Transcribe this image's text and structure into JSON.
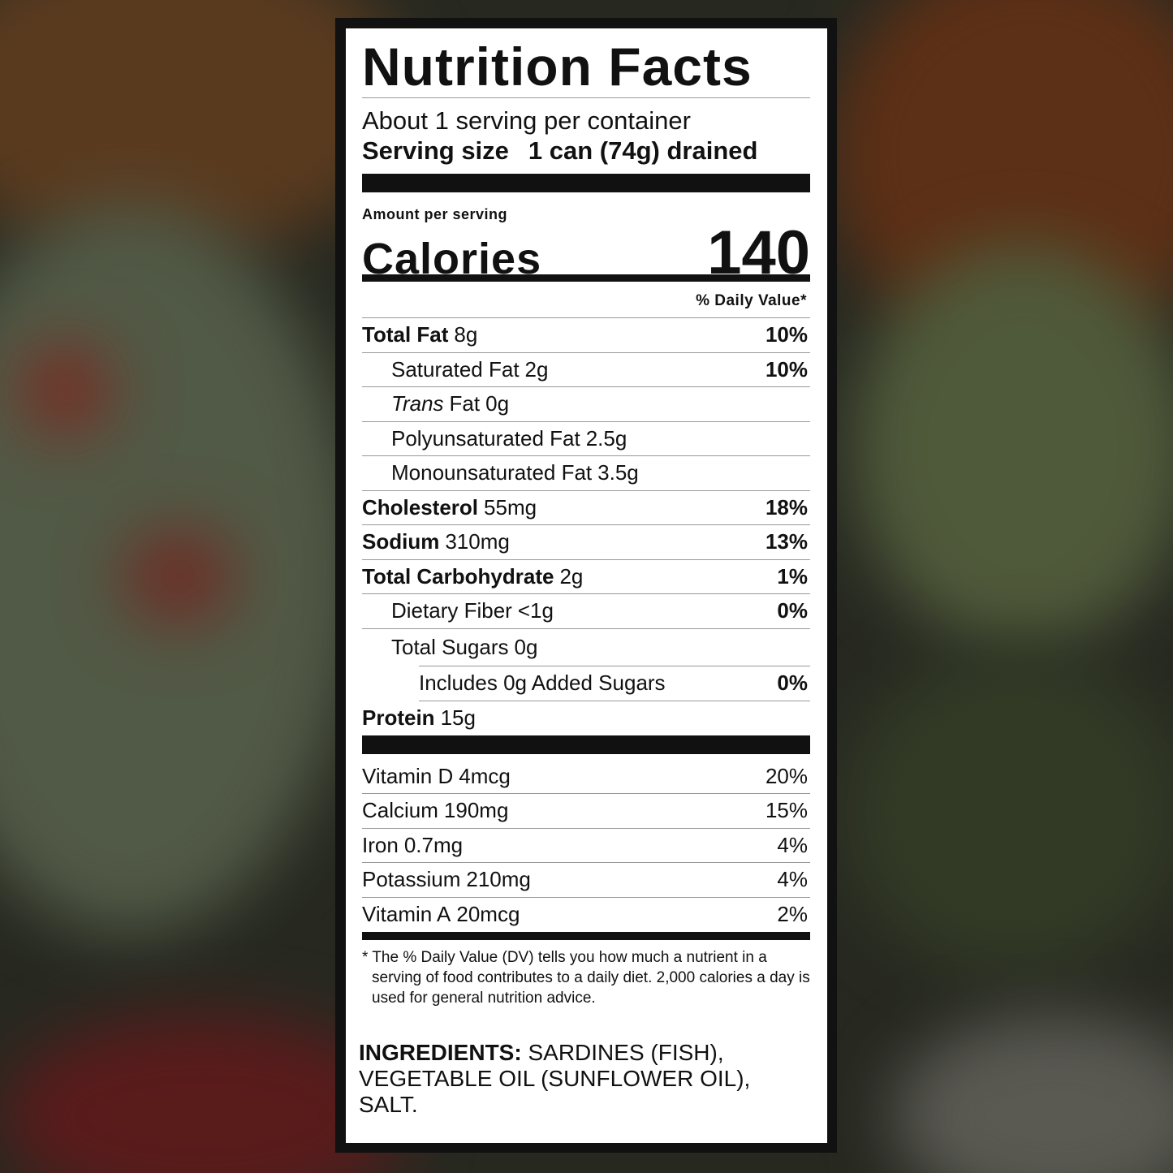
{
  "title": "Nutrition Facts",
  "servings": "About 1 serving per container",
  "serving_size": {
    "label": "Serving size",
    "value": "1 can (74g) drained"
  },
  "amount_per_serving": "Amount per serving",
  "calories": {
    "label": "Calories",
    "value": "140"
  },
  "daily_value_header": "% Daily Value*",
  "nutrients": [
    {
      "name": "Total Fat",
      "amount": "8g",
      "dv": "10%",
      "subs": [
        {
          "name": "Saturated Fat",
          "amount": "2g",
          "dv": "10%"
        },
        {
          "name_italic": "Trans",
          "name": "Fat",
          "amount": "0g"
        },
        {
          "name": "Polyunsaturated Fat",
          "amount": "2.5g"
        },
        {
          "name": "Monounsaturated Fat",
          "amount": "3.5g"
        }
      ]
    },
    {
      "name": "Cholesterol",
      "amount": "55mg",
      "dv": "18%"
    },
    {
      "name": "Sodium",
      "amount": "310mg",
      "dv": "13%"
    },
    {
      "name": "Total Carbohydrate",
      "amount": "2g",
      "dv": "1%",
      "subs": [
        {
          "name": "Dietary Fiber",
          "amount": "<1g",
          "dv": "0%"
        },
        {
          "name": "Total Sugars",
          "amount": "0g",
          "subs": [
            {
              "name": "Includes 0g Added Sugars",
              "dv": "0%"
            }
          ]
        }
      ]
    },
    {
      "name": "Protein",
      "amount": "15g"
    }
  ],
  "vitamins": [
    {
      "name": "Vitamin D",
      "amount": "4mcg",
      "dv": "20%"
    },
    {
      "name": "Calcium",
      "amount": "190mg",
      "dv": "15%"
    },
    {
      "name": "Iron",
      "amount": "0.7mg",
      "dv": "4%"
    },
    {
      "name": "Potassium",
      "amount": "210mg",
      "dv": "4%"
    },
    {
      "name": "Vitamin A",
      "amount": "20mcg",
      "dv": "2%"
    }
  ],
  "footnote": "* The % Daily Value (DV) tells you how much a nutrient in a serving of food contributes to a daily diet. 2,000 calories a day is used for general nutrition advice.",
  "ingredients": {
    "label": "INGREDIENTS:",
    "text": "SARDINES (FISH), VEGETABLE OIL (SUNFLOWER OIL), SALT."
  }
}
